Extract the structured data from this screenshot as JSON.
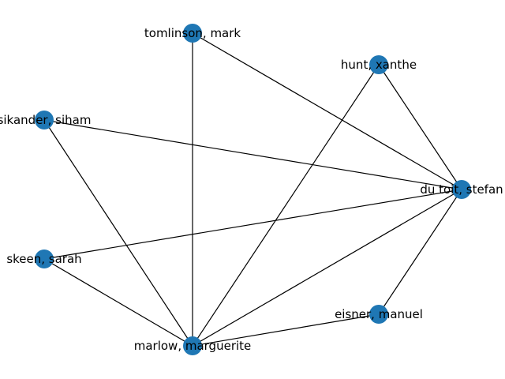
{
  "graph": {
    "node_color": "#1f77b4",
    "edge_color": "#000000",
    "nodes": [
      {
        "id": "tomlinson",
        "label": "tomlinson, mark"
      },
      {
        "id": "hunt",
        "label": "hunt, xanthe"
      },
      {
        "id": "sikander",
        "label": "sikander, siham"
      },
      {
        "id": "dutoit",
        "label": "du toit, stefan"
      },
      {
        "id": "skeen",
        "label": "skeen, sarah"
      },
      {
        "id": "eisner",
        "label": "eisner, manuel"
      },
      {
        "id": "marlow",
        "label": "marlow, marguerite"
      }
    ],
    "edges": [
      [
        "tomlinson",
        "dutoit"
      ],
      [
        "tomlinson",
        "marlow"
      ],
      [
        "hunt",
        "dutoit"
      ],
      [
        "hunt",
        "marlow"
      ],
      [
        "sikander",
        "dutoit"
      ],
      [
        "sikander",
        "marlow"
      ],
      [
        "skeen",
        "dutoit"
      ],
      [
        "skeen",
        "marlow"
      ],
      [
        "dutoit",
        "marlow"
      ],
      [
        "dutoit",
        "eisner"
      ],
      [
        "eisner",
        "marlow"
      ]
    ]
  }
}
